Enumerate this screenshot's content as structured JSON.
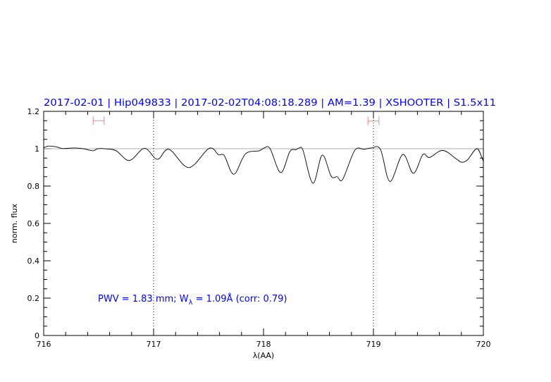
{
  "chart_data": {
    "type": "line",
    "title": "2017-02-01 | Hip049833 | 2017-02-02T04:08:18.289 | AM=1.39 | XSHOOTER | S1.5x11",
    "xlabel": "λ(AA)",
    "ylabel": "norm. flux",
    "xlim": [
      716,
      720
    ],
    "ylim": [
      0,
      1.2
    ],
    "x_ticks": [
      "716",
      "717",
      "718",
      "719",
      "720"
    ],
    "y_ticks": [
      "0",
      "0.2",
      "0.4",
      "0.6",
      "0.8",
      "1",
      "1.2"
    ],
    "grid": false,
    "reference_line_y": 1,
    "vertical_markers": [
      717,
      719
    ],
    "error_bars": [
      {
        "x": 716.5,
        "xmin": 716.45,
        "xmax": 716.55,
        "y": 1.15
      },
      {
        "x": 719.0,
        "xmin": 718.95,
        "xmax": 719.05,
        "y": 1.148
      }
    ],
    "annotation": "PWV = 1.83 mm; W",
    "annotation_sub": "λ",
    "annotation_rest": " = 1.09Å (corr: 0.79)",
    "series": [
      {
        "x": [
          716.0,
          716.04,
          716.115,
          716.17,
          716.276,
          716.36,
          716.45,
          716.49,
          716.575,
          716.66,
          716.78,
          716.917,
          717.034,
          717.14,
          717.32,
          717.505,
          717.59,
          717.643,
          717.73,
          717.835,
          717.96,
          718.006,
          718.06,
          718.156,
          718.24,
          718.295,
          718.327,
          718.36,
          718.45,
          718.534,
          718.615,
          718.67,
          718.72,
          718.83,
          718.915,
          718.98,
          719.064,
          719.15,
          719.267,
          719.363,
          719.45,
          719.51,
          719.63,
          719.75,
          719.8,
          719.855,
          719.94,
          719.99,
          720.0
        ],
        "y": [
          1.004,
          1.014,
          1.01,
          1.001,
          1.004,
          1.0,
          0.989,
          1.0,
          0.999,
          0.989,
          0.937,
          1.002,
          0.943,
          0.997,
          0.899,
          1.002,
          0.968,
          0.963,
          0.863,
          0.972,
          0.989,
          1.004,
          1.0,
          0.872,
          0.985,
          0.995,
          1.004,
          0.99,
          0.815,
          0.966,
          0.853,
          0.85,
          0.836,
          0.991,
          0.997,
          1.004,
          0.996,
          0.825,
          0.969,
          0.868,
          0.969,
          0.953,
          0.991,
          0.947,
          0.928,
          0.94,
          1.0,
          0.947,
          0.93
        ]
      }
    ]
  },
  "colors": {
    "title": "#0000ff",
    "curve": "#000000",
    "reference": "#d06060",
    "error_bar": "#ff8080"
  }
}
